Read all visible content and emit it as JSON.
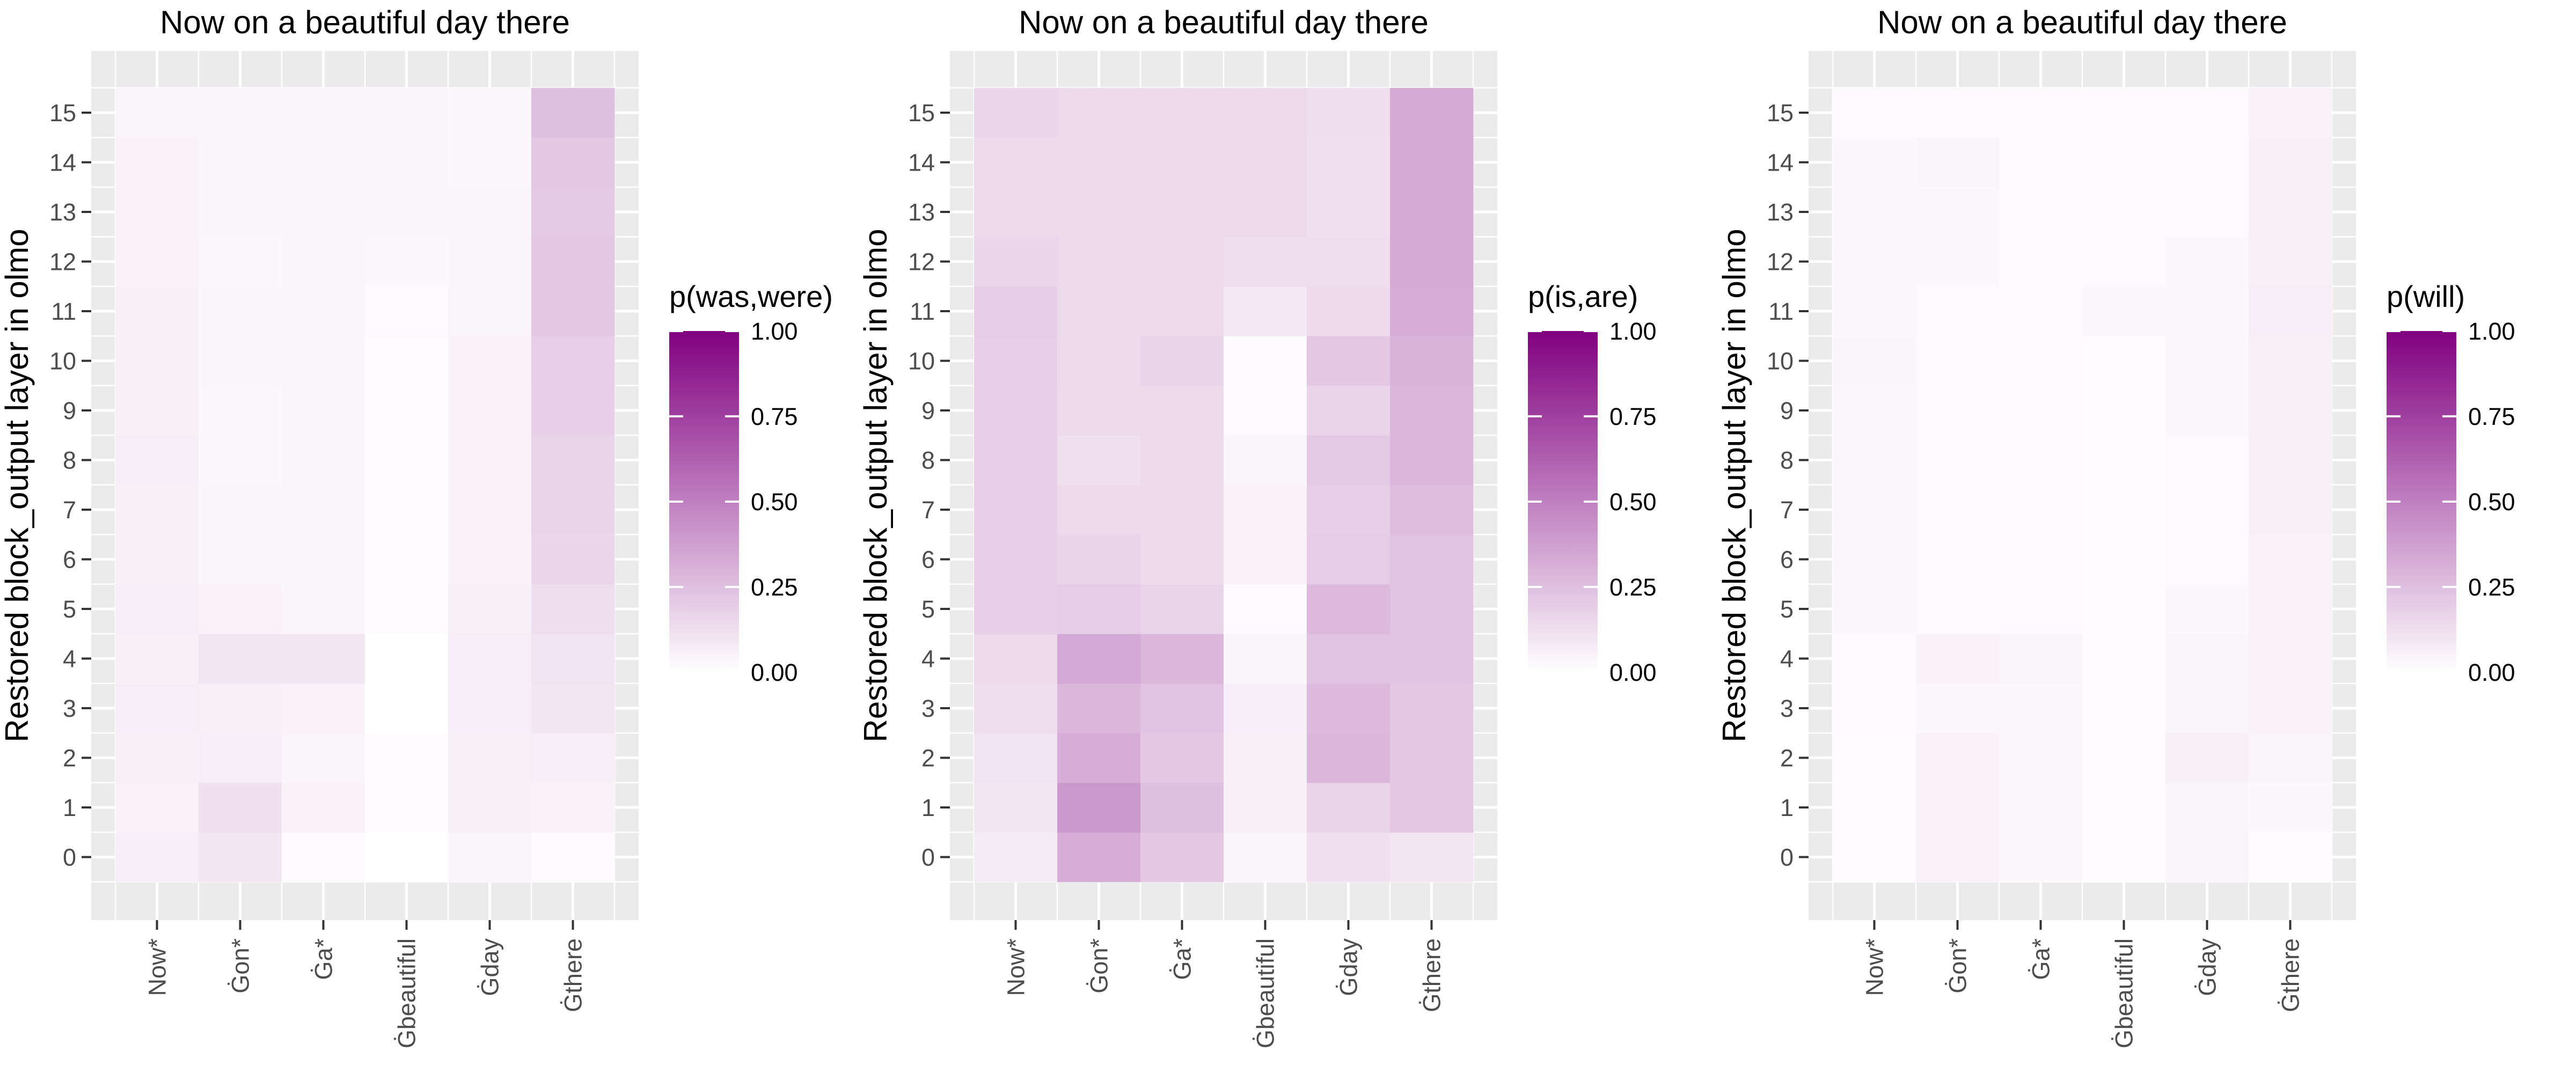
{
  "chart_data": [
    {
      "type": "heatmap",
      "title": "Now on a beautiful day there",
      "xlabel": "",
      "ylabel": "Restored block_output layer in olmo",
      "x_categories": [
        "Now*",
        "Ġon*",
        "Ġa*",
        "Ġbeautiful",
        "Ġday",
        "Ġthere"
      ],
      "y_categories": [
        0,
        1,
        2,
        3,
        4,
        5,
        6,
        7,
        8,
        9,
        10,
        11,
        12,
        13,
        14,
        15
      ],
      "legend": {
        "title": "p(was,were)",
        "range": [
          0,
          1
        ],
        "ticks": [
          "0.00",
          "0.25",
          "0.50",
          "0.75",
          "1.00"
        ],
        "low_color": "#ffffff",
        "high_color": "#800080",
        "placement": "right"
      },
      "grid": true,
      "values": [
        [
          0.07,
          0.1,
          0.02,
          0.0,
          0.04,
          0.02
        ],
        [
          0.05,
          0.12,
          0.05,
          0.01,
          0.06,
          0.05
        ],
        [
          0.06,
          0.07,
          0.04,
          0.01,
          0.06,
          0.07
        ],
        [
          0.07,
          0.06,
          0.05,
          0.0,
          0.07,
          0.1
        ],
        [
          0.06,
          0.1,
          0.1,
          0.0,
          0.07,
          0.11
        ],
        [
          0.07,
          0.05,
          0.04,
          0.01,
          0.06,
          0.13
        ],
        [
          0.06,
          0.04,
          0.04,
          0.01,
          0.05,
          0.16
        ],
        [
          0.06,
          0.04,
          0.04,
          0.01,
          0.05,
          0.17
        ],
        [
          0.07,
          0.03,
          0.04,
          0.01,
          0.05,
          0.17
        ],
        [
          0.06,
          0.03,
          0.04,
          0.01,
          0.05,
          0.18
        ],
        [
          0.06,
          0.04,
          0.04,
          0.01,
          0.05,
          0.19
        ],
        [
          0.06,
          0.04,
          0.04,
          0.02,
          0.04,
          0.22
        ],
        [
          0.05,
          0.03,
          0.04,
          0.03,
          0.04,
          0.22
        ],
        [
          0.05,
          0.04,
          0.04,
          0.04,
          0.04,
          0.21
        ],
        [
          0.05,
          0.04,
          0.04,
          0.04,
          0.03,
          0.22
        ],
        [
          0.04,
          0.04,
          0.04,
          0.04,
          0.03,
          0.25
        ]
      ]
    },
    {
      "type": "heatmap",
      "title": "Now on a beautiful day there",
      "xlabel": "",
      "ylabel": "Restored block_output layer in olmo",
      "x_categories": [
        "Now*",
        "Ġon*",
        "Ġa*",
        "Ġbeautiful",
        "Ġday",
        "Ġthere"
      ],
      "y_categories": [
        0,
        1,
        2,
        3,
        4,
        5,
        6,
        7,
        8,
        9,
        10,
        11,
        12,
        13,
        14,
        15
      ],
      "legend": {
        "title": "p(is,are)",
        "range": [
          0,
          1
        ],
        "ticks": [
          "0.00",
          "0.25",
          "0.50",
          "0.75",
          "1.00"
        ],
        "low_color": "#ffffff",
        "high_color": "#800080",
        "placement": "right"
      },
      "grid": true,
      "values": [
        [
          0.08,
          0.32,
          0.22,
          0.04,
          0.12,
          0.1
        ],
        [
          0.1,
          0.4,
          0.25,
          0.06,
          0.17,
          0.22
        ],
        [
          0.11,
          0.32,
          0.22,
          0.06,
          0.28,
          0.22
        ],
        [
          0.13,
          0.28,
          0.24,
          0.07,
          0.27,
          0.22
        ],
        [
          0.14,
          0.34,
          0.28,
          0.04,
          0.24,
          0.23
        ],
        [
          0.19,
          0.2,
          0.17,
          0.02,
          0.27,
          0.23
        ],
        [
          0.18,
          0.17,
          0.15,
          0.05,
          0.2,
          0.24
        ],
        [
          0.18,
          0.15,
          0.15,
          0.05,
          0.19,
          0.26
        ],
        [
          0.19,
          0.12,
          0.15,
          0.04,
          0.21,
          0.28
        ],
        [
          0.19,
          0.14,
          0.15,
          0.02,
          0.17,
          0.28
        ],
        [
          0.19,
          0.15,
          0.17,
          0.02,
          0.22,
          0.3
        ],
        [
          0.2,
          0.15,
          0.15,
          0.09,
          0.14,
          0.32
        ],
        [
          0.16,
          0.15,
          0.15,
          0.13,
          0.13,
          0.33
        ],
        [
          0.15,
          0.14,
          0.14,
          0.14,
          0.12,
          0.33
        ],
        [
          0.15,
          0.14,
          0.14,
          0.14,
          0.12,
          0.33
        ],
        [
          0.16,
          0.15,
          0.15,
          0.15,
          0.13,
          0.33
        ]
      ]
    },
    {
      "type": "heatmap",
      "title": "Now on a beautiful day there",
      "xlabel": "",
      "ylabel": "Restored block_output layer in olmo",
      "x_categories": [
        "Now*",
        "Ġon*",
        "Ġa*",
        "Ġbeautiful",
        "Ġday",
        "Ġthere"
      ],
      "y_categories": [
        0,
        1,
        2,
        3,
        4,
        5,
        6,
        7,
        8,
        9,
        10,
        11,
        12,
        13,
        14,
        15
      ],
      "legend": {
        "title": "p(will)",
        "range": [
          0,
          1
        ],
        "ticks": [
          "0.00",
          "0.25",
          "0.50",
          "0.75",
          "1.00"
        ],
        "low_color": "#ffffff",
        "high_color": "#800080",
        "placement": "right"
      },
      "grid": true,
      "values": [
        [
          0.01,
          0.05,
          0.03,
          0.01,
          0.04,
          0.01
        ],
        [
          0.01,
          0.05,
          0.03,
          0.01,
          0.04,
          0.03
        ],
        [
          0.01,
          0.05,
          0.03,
          0.01,
          0.06,
          0.04
        ],
        [
          0.02,
          0.03,
          0.03,
          0.01,
          0.04,
          0.05
        ],
        [
          0.02,
          0.05,
          0.04,
          0.01,
          0.04,
          0.05
        ],
        [
          0.03,
          0.02,
          0.02,
          0.01,
          0.03,
          0.05
        ],
        [
          0.03,
          0.02,
          0.02,
          0.01,
          0.02,
          0.05
        ],
        [
          0.03,
          0.02,
          0.02,
          0.01,
          0.02,
          0.06
        ],
        [
          0.03,
          0.02,
          0.02,
          0.01,
          0.02,
          0.06
        ],
        [
          0.03,
          0.02,
          0.02,
          0.01,
          0.03,
          0.06
        ],
        [
          0.04,
          0.02,
          0.02,
          0.01,
          0.03,
          0.06
        ],
        [
          0.03,
          0.02,
          0.02,
          0.03,
          0.03,
          0.07
        ],
        [
          0.03,
          0.03,
          0.02,
          0.02,
          0.03,
          0.06
        ],
        [
          0.03,
          0.03,
          0.02,
          0.02,
          0.02,
          0.06
        ],
        [
          0.03,
          0.04,
          0.02,
          0.02,
          0.02,
          0.06
        ],
        [
          0.02,
          0.02,
          0.02,
          0.02,
          0.02,
          0.05
        ]
      ]
    }
  ]
}
